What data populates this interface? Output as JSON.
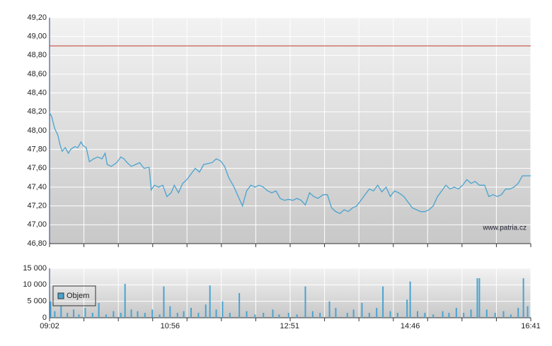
{
  "chart_data": [
    {
      "type": "line",
      "watermark": "www.patria.cz",
      "xlim": [
        542,
        1001
      ],
      "xgrid": [
        542,
        574.8,
        607.6,
        640.4,
        673.1,
        705.9,
        738.7,
        771.5,
        804.3,
        837.1,
        869.9,
        902.6,
        935.4,
        968.2,
        1001
      ],
      "ylim": [
        46.8,
        49.2
      ],
      "yticks": [
        {
          "value": 46.8,
          "label": "46,80"
        },
        {
          "value": 47.0,
          "label": "47,00"
        },
        {
          "value": 47.2,
          "label": "47,20"
        },
        {
          "value": 47.4,
          "label": "47,40"
        },
        {
          "value": 47.6,
          "label": "47,60"
        },
        {
          "value": 47.8,
          "label": "47,80"
        },
        {
          "value": 48.0,
          "label": "48,00"
        },
        {
          "value": 48.2,
          "label": "48,20"
        },
        {
          "value": 48.4,
          "label": "48,40"
        },
        {
          "value": 48.6,
          "label": "48,60"
        },
        {
          "value": 48.8,
          "label": "48,80"
        },
        {
          "value": 49.0,
          "label": "49,00"
        },
        {
          "value": 49.2,
          "label": "49,20"
        }
      ],
      "grid": true,
      "reference_line": {
        "value": 48.9,
        "color": "#c0392b"
      },
      "color": "#4aa3cf",
      "x": [
        542,
        544,
        547,
        550,
        552,
        554,
        557,
        560,
        562,
        566,
        569,
        572,
        574,
        577,
        580,
        584,
        588,
        592,
        595,
        597,
        601,
        606,
        610,
        613,
        616,
        620,
        624,
        628,
        632,
        637,
        639,
        642,
        646,
        650,
        654,
        658,
        661,
        665,
        669,
        673,
        677,
        681,
        685,
        689,
        693,
        697,
        701,
        705,
        709,
        713,
        718,
        722,
        726,
        730,
        734,
        738,
        742,
        746,
        750,
        754,
        758,
        762,
        766,
        770,
        774,
        778,
        782,
        786,
        790,
        794,
        798,
        803,
        807,
        811,
        815,
        819,
        823,
        827,
        831,
        835,
        839,
        843,
        847,
        851,
        855,
        859,
        863,
        867,
        871,
        875,
        880,
        884,
        888,
        892,
        896,
        900,
        904,
        908,
        912,
        916,
        920,
        924,
        928,
        932,
        936,
        940,
        944,
        948,
        952,
        957,
        961,
        965,
        969,
        973,
        977,
        981,
        985,
        989,
        993,
        997,
        1001
      ],
      "y": [
        48.19,
        48.15,
        48.02,
        47.95,
        47.85,
        47.78,
        47.82,
        47.76,
        47.8,
        47.83,
        47.82,
        47.88,
        47.84,
        47.82,
        47.67,
        47.7,
        47.72,
        47.7,
        47.76,
        47.64,
        47.62,
        47.66,
        47.72,
        47.7,
        47.66,
        47.62,
        47.64,
        47.66,
        47.6,
        47.61,
        47.37,
        47.42,
        47.4,
        47.42,
        47.3,
        47.34,
        47.42,
        47.34,
        47.44,
        47.48,
        47.54,
        47.6,
        47.56,
        47.64,
        47.65,
        47.66,
        47.7,
        47.68,
        47.62,
        47.5,
        47.4,
        47.3,
        47.2,
        47.36,
        47.42,
        47.4,
        47.42,
        47.4,
        47.36,
        47.34,
        47.36,
        47.28,
        47.26,
        47.27,
        47.26,
        47.28,
        47.26,
        47.21,
        47.34,
        47.3,
        47.28,
        47.32,
        47.32,
        47.18,
        47.14,
        47.12,
        47.16,
        47.14,
        47.18,
        47.2,
        47.26,
        47.32,
        47.38,
        47.36,
        47.42,
        47.35,
        47.4,
        47.3,
        47.36,
        47.34,
        47.3,
        47.24,
        47.18,
        47.16,
        47.14,
        47.14,
        47.16,
        47.2,
        47.3,
        47.36,
        47.42,
        47.38,
        47.4,
        47.38,
        47.42,
        47.48,
        47.44,
        47.46,
        47.42,
        47.42,
        47.3,
        47.32,
        47.3,
        47.32,
        47.38,
        47.38,
        47.4,
        47.44,
        47.52,
        47.52,
        47.52
      ]
    },
    {
      "type": "bar",
      "xlim": [
        542,
        1001
      ],
      "xgrid": [
        542,
        574.8,
        607.6,
        640.4,
        673.1,
        705.9,
        738.7,
        771.5,
        804.3,
        837.1,
        869.9,
        902.6,
        935.4,
        968.2,
        1001
      ],
      "xticks": [
        {
          "value": 542,
          "label": "09:02"
        },
        {
          "value": 657,
          "label": "10:56"
        },
        {
          "value": 771,
          "label": "12:51"
        },
        {
          "value": 886,
          "label": "14:46"
        },
        {
          "value": 1001,
          "label": "16:41"
        }
      ],
      "ylim": [
        0,
        15000
      ],
      "yticks": [
        {
          "value": 0,
          "label": "0"
        },
        {
          "value": 5000,
          "label": "5 000"
        },
        {
          "value": 10000,
          "label": "10 000"
        },
        {
          "value": 15000,
          "label": "15 000"
        }
      ],
      "grid": true,
      "x": [
        543,
        547,
        553,
        559,
        565,
        570,
        576,
        583,
        589,
        596,
        603,
        610,
        614,
        620,
        626,
        633,
        640,
        647,
        651,
        657,
        664,
        670,
        677,
        684,
        691,
        695,
        701,
        707,
        714,
        723,
        730,
        738,
        746,
        755,
        761,
        770,
        778,
        786,
        793,
        800,
        809,
        815,
        826,
        832,
        840,
        847,
        854,
        860,
        867,
        874,
        883,
        886,
        893,
        900,
        908,
        917,
        923,
        930,
        937,
        944,
        950,
        952,
        959,
        967,
        975,
        982,
        989,
        994,
        998
      ],
      "series": [
        {
          "name": "Objem",
          "color": "#4aa3cf",
          "values": [
            5000,
            2000,
            3500,
            1500,
            2500,
            1000,
            3000,
            1500,
            4500,
            1000,
            2000,
            1500,
            10300,
            2500,
            2000,
            1500,
            2500,
            1000,
            9500,
            3500,
            1500,
            2000,
            3000,
            1500,
            4000,
            9800,
            2500,
            5000,
            1500,
            7500,
            2000,
            1000,
            1500,
            2500,
            1000,
            1500,
            1000,
            9500,
            2000,
            1500,
            5000,
            3000,
            1500,
            2500,
            4500,
            1500,
            3000,
            9500,
            2000,
            1500,
            5500,
            11000,
            2000,
            1500,
            1000,
            2000,
            1500,
            3000,
            1500,
            2500,
            12000,
            12000,
            2500,
            1500,
            2000,
            1000,
            3000,
            12000,
            3500
          ]
        }
      ]
    }
  ]
}
